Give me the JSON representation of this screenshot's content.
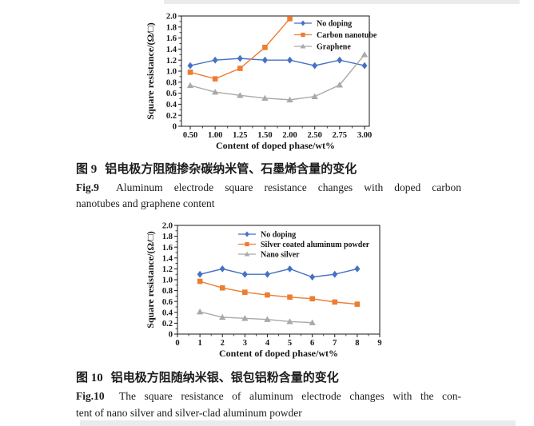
{
  "page": {
    "background": "#ffffff"
  },
  "figures": {
    "fig9": {
      "caption_zh": {
        "label": "图 9",
        "text": "铝电极方阻随掺杂碳纳米管、石墨烯含量的变化"
      },
      "caption_en": {
        "label": "Fig.9",
        "line1": "Aluminum electrode square resistance changes with doped carbon",
        "line2": "nanotubes and graphene content"
      }
    },
    "fig10": {
      "caption_zh": {
        "label": "图 10",
        "text": "铝电极方阻随纳米银、银包铝粉含量的变化"
      },
      "caption_en": {
        "label": "Fig.10",
        "line1": "The square resistance of aluminum electrode changes with the con-",
        "line2": "tent of nano silver and silver-clad aluminum powder"
      }
    }
  },
  "chart_data": [
    {
      "id": "fig9",
      "type": "line",
      "title": "",
      "xlabel": "Content of doped phase/wt%",
      "ylabel": "Square resistance/(Ω/□)",
      "x_type": "categorical",
      "categories": [
        "0.50",
        "1.00",
        "1.25",
        "1.50",
        "2.00",
        "2.50",
        "2.75",
        "3.00"
      ],
      "ylim": [
        0,
        2.0
      ],
      "ytick_step": 0.2,
      "yticks": [
        "0",
        "0.2",
        "0.4",
        "0.6",
        "0.8",
        "1.0",
        "1.2",
        "1.4",
        "1.6",
        "1.8",
        "2.0"
      ],
      "grid": false,
      "legend_position": "top-right-inside",
      "series": [
        {
          "name": "No doping",
          "marker": "diamond",
          "color": "#4472C4",
          "values": [
            1.1,
            1.2,
            1.23,
            1.2,
            1.2,
            1.1,
            1.2,
            1.1
          ]
        },
        {
          "name": "Carbon nanotube",
          "marker": "square",
          "color": "#ED7D31",
          "values": [
            0.98,
            0.86,
            1.05,
            1.43,
            1.95,
            null,
            null,
            null
          ]
        },
        {
          "name": "Graphene",
          "marker": "triangle",
          "color": "#A9A9A9",
          "values": [
            0.74,
            0.62,
            0.56,
            0.51,
            0.48,
            0.54,
            0.75,
            1.3
          ]
        }
      ]
    },
    {
      "id": "fig10",
      "type": "line",
      "title": "",
      "xlabel": "Content of doped phase/wt%",
      "ylabel": "Square resistance/(Ω/□)",
      "x_type": "linear",
      "xlim": [
        0,
        9
      ],
      "xticks": [
        "0",
        "1",
        "2",
        "3",
        "4",
        "5",
        "6",
        "7",
        "8",
        "9"
      ],
      "ylim": [
        0,
        2.0
      ],
      "ytick_step": 0.2,
      "yticks": [
        "0",
        "0.2",
        "0.4",
        "0.6",
        "0.8",
        "1.0",
        "1.2",
        "1.4",
        "1.6",
        "1.8",
        "2.0"
      ],
      "grid": false,
      "legend_position": "top-inside",
      "series": [
        {
          "name": "No doping",
          "marker": "diamond",
          "color": "#4472C4",
          "x": [
            1,
            2,
            3,
            4,
            5,
            6,
            7,
            8
          ],
          "values": [
            1.1,
            1.2,
            1.1,
            1.1,
            1.2,
            1.05,
            1.1,
            1.2
          ]
        },
        {
          "name": "Silver coated aluminum powder",
          "marker": "square",
          "color": "#ED7D31",
          "x": [
            1,
            2,
            3,
            4,
            5,
            6,
            7,
            8
          ],
          "values": [
            0.97,
            0.85,
            0.77,
            0.72,
            0.68,
            0.65,
            0.59,
            0.55
          ]
        },
        {
          "name": "Nano silver",
          "marker": "triangle",
          "color": "#A9A9A9",
          "x": [
            1,
            2,
            3,
            4,
            5,
            6
          ],
          "values": [
            0.41,
            0.31,
            0.29,
            0.27,
            0.23,
            0.21
          ]
        }
      ]
    }
  ]
}
